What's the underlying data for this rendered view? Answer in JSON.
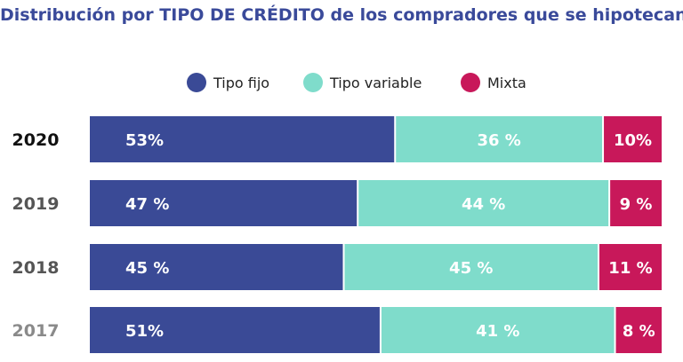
{
  "chart_data": {
    "type": "bar",
    "orientation": "horizontal",
    "stacked": true,
    "title": "Distribución por TIPO DE CRÉDITO de los compradores que se hipotecan",
    "legend_position": "top",
    "categories": [
      "2020",
      "2019",
      "2018",
      "2017"
    ],
    "series": [
      {
        "name": "Tipo fijo",
        "color": "#3a4a96",
        "values": [
          53,
          47,
          45,
          51
        ],
        "labels": [
          "53%",
          "47 %",
          "45 %",
          "51%"
        ]
      },
      {
        "name": "Tipo variable",
        "color": "#7fdccb",
        "values": [
          36,
          44,
          45,
          41
        ],
        "labels": [
          "36 %",
          "44 %",
          "45 %",
          "41 %"
        ]
      },
      {
        "name": "Mixta",
        "color": "#c8185a",
        "values": [
          10,
          9,
          11,
          8
        ],
        "labels": [
          "10%",
          "9 %",
          "11 %",
          "8 %"
        ]
      }
    ],
    "year_label_colors": [
      "#111111",
      "#555555",
      "#555555",
      "#8a8a8a"
    ],
    "grid": false
  }
}
